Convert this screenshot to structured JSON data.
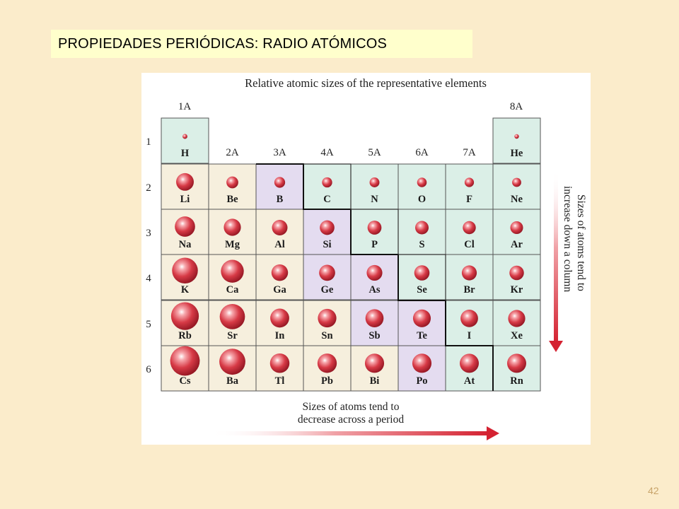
{
  "slide": {
    "title": "PROPIEDADES PERIÓDICAS: RADIO ATÓMICOS",
    "page_number": "42"
  },
  "figure": {
    "title": "Relative atomic sizes of the representative elements",
    "group_headers": [
      "1A",
      "2A",
      "3A",
      "4A",
      "5A",
      "6A",
      "7A",
      "8A"
    ],
    "period_labels": [
      "1",
      "2",
      "3",
      "4",
      "5",
      "6"
    ],
    "caption_across": [
      "Sizes of atoms tend to",
      "decrease across a period"
    ],
    "caption_down": [
      "Sizes of atoms tend to",
      "increase down a column"
    ],
    "colors": {
      "metal": "#f6efdd",
      "metalloid": "#e4dcf0",
      "nonmetal": "#dbefe7",
      "atom": "#d23a47",
      "arrow": "#d42231"
    },
    "elements": [
      {
        "symbol": "H",
        "period": 1,
        "group": 1,
        "radius": 0.37,
        "category": "nonmetal"
      },
      {
        "symbol": "He",
        "period": 1,
        "group": 8,
        "radius": 0.32,
        "category": "nonmetal"
      },
      {
        "symbol": "Li",
        "period": 2,
        "group": 1,
        "radius": 1.34,
        "category": "metal"
      },
      {
        "symbol": "Be",
        "period": 2,
        "group": 2,
        "radius": 0.9,
        "category": "metal"
      },
      {
        "symbol": "B",
        "period": 2,
        "group": 3,
        "radius": 0.82,
        "category": "metalloid"
      },
      {
        "symbol": "C",
        "period": 2,
        "group": 4,
        "radius": 0.77,
        "category": "nonmetal"
      },
      {
        "symbol": "N",
        "period": 2,
        "group": 5,
        "radius": 0.75,
        "category": "nonmetal"
      },
      {
        "symbol": "O",
        "period": 2,
        "group": 6,
        "radius": 0.73,
        "category": "nonmetal"
      },
      {
        "symbol": "F",
        "period": 2,
        "group": 7,
        "radius": 0.71,
        "category": "nonmetal"
      },
      {
        "symbol": "Ne",
        "period": 2,
        "group": 8,
        "radius": 0.69,
        "category": "nonmetal"
      },
      {
        "symbol": "Na",
        "period": 3,
        "group": 1,
        "radius": 1.54,
        "category": "metal"
      },
      {
        "symbol": "Mg",
        "period": 3,
        "group": 2,
        "radius": 1.3,
        "category": "metal"
      },
      {
        "symbol": "Al",
        "period": 3,
        "group": 3,
        "radius": 1.18,
        "category": "metal"
      },
      {
        "symbol": "Si",
        "period": 3,
        "group": 4,
        "radius": 1.11,
        "category": "metalloid"
      },
      {
        "symbol": "P",
        "period": 3,
        "group": 5,
        "radius": 1.06,
        "category": "nonmetal"
      },
      {
        "symbol": "S",
        "period": 3,
        "group": 6,
        "radius": 1.02,
        "category": "nonmetal"
      },
      {
        "symbol": "Cl",
        "period": 3,
        "group": 7,
        "radius": 0.99,
        "category": "nonmetal"
      },
      {
        "symbol": "Ar",
        "period": 3,
        "group": 8,
        "radius": 0.97,
        "category": "nonmetal"
      },
      {
        "symbol": "K",
        "period": 4,
        "group": 1,
        "radius": 1.96,
        "category": "metal"
      },
      {
        "symbol": "Ca",
        "period": 4,
        "group": 2,
        "radius": 1.74,
        "category": "metal"
      },
      {
        "symbol": "Ga",
        "period": 4,
        "group": 3,
        "radius": 1.26,
        "category": "metal"
      },
      {
        "symbol": "Ge",
        "period": 4,
        "group": 4,
        "radius": 1.22,
        "category": "metalloid"
      },
      {
        "symbol": "As",
        "period": 4,
        "group": 5,
        "radius": 1.19,
        "category": "metalloid"
      },
      {
        "symbol": "Se",
        "period": 4,
        "group": 6,
        "radius": 1.16,
        "category": "nonmetal"
      },
      {
        "symbol": "Br",
        "period": 4,
        "group": 7,
        "radius": 1.14,
        "category": "nonmetal"
      },
      {
        "symbol": "Kr",
        "period": 4,
        "group": 8,
        "radius": 1.1,
        "category": "nonmetal"
      },
      {
        "symbol": "Rb",
        "period": 5,
        "group": 1,
        "radius": 2.11,
        "category": "metal"
      },
      {
        "symbol": "Sr",
        "period": 5,
        "group": 2,
        "radius": 1.92,
        "category": "metal"
      },
      {
        "symbol": "In",
        "period": 5,
        "group": 3,
        "radius": 1.44,
        "category": "metal"
      },
      {
        "symbol": "Sn",
        "period": 5,
        "group": 4,
        "radius": 1.41,
        "category": "metal"
      },
      {
        "symbol": "Sb",
        "period": 5,
        "group": 5,
        "radius": 1.38,
        "category": "metalloid"
      },
      {
        "symbol": "Te",
        "period": 5,
        "group": 6,
        "radius": 1.35,
        "category": "metalloid"
      },
      {
        "symbol": "I",
        "period": 5,
        "group": 7,
        "radius": 1.33,
        "category": "nonmetal"
      },
      {
        "symbol": "Xe",
        "period": 5,
        "group": 8,
        "radius": 1.3,
        "category": "nonmetal"
      },
      {
        "symbol": "Cs",
        "period": 6,
        "group": 1,
        "radius": 2.25,
        "category": "metal"
      },
      {
        "symbol": "Ba",
        "period": 6,
        "group": 2,
        "radius": 1.98,
        "category": "metal"
      },
      {
        "symbol": "Tl",
        "period": 6,
        "group": 3,
        "radius": 1.48,
        "category": "metal"
      },
      {
        "symbol": "Pb",
        "period": 6,
        "group": 4,
        "radius": 1.47,
        "category": "metal"
      },
      {
        "symbol": "Bi",
        "period": 6,
        "group": 5,
        "radius": 1.46,
        "category": "metal"
      },
      {
        "symbol": "Po",
        "period": 6,
        "group": 6,
        "radius": 1.46,
        "category": "metalloid"
      },
      {
        "symbol": "At",
        "period": 6,
        "group": 7,
        "radius": 1.45,
        "category": "nonmetal"
      },
      {
        "symbol": "Rn",
        "period": 6,
        "group": 8,
        "radius": 1.45,
        "category": "nonmetal"
      }
    ]
  }
}
